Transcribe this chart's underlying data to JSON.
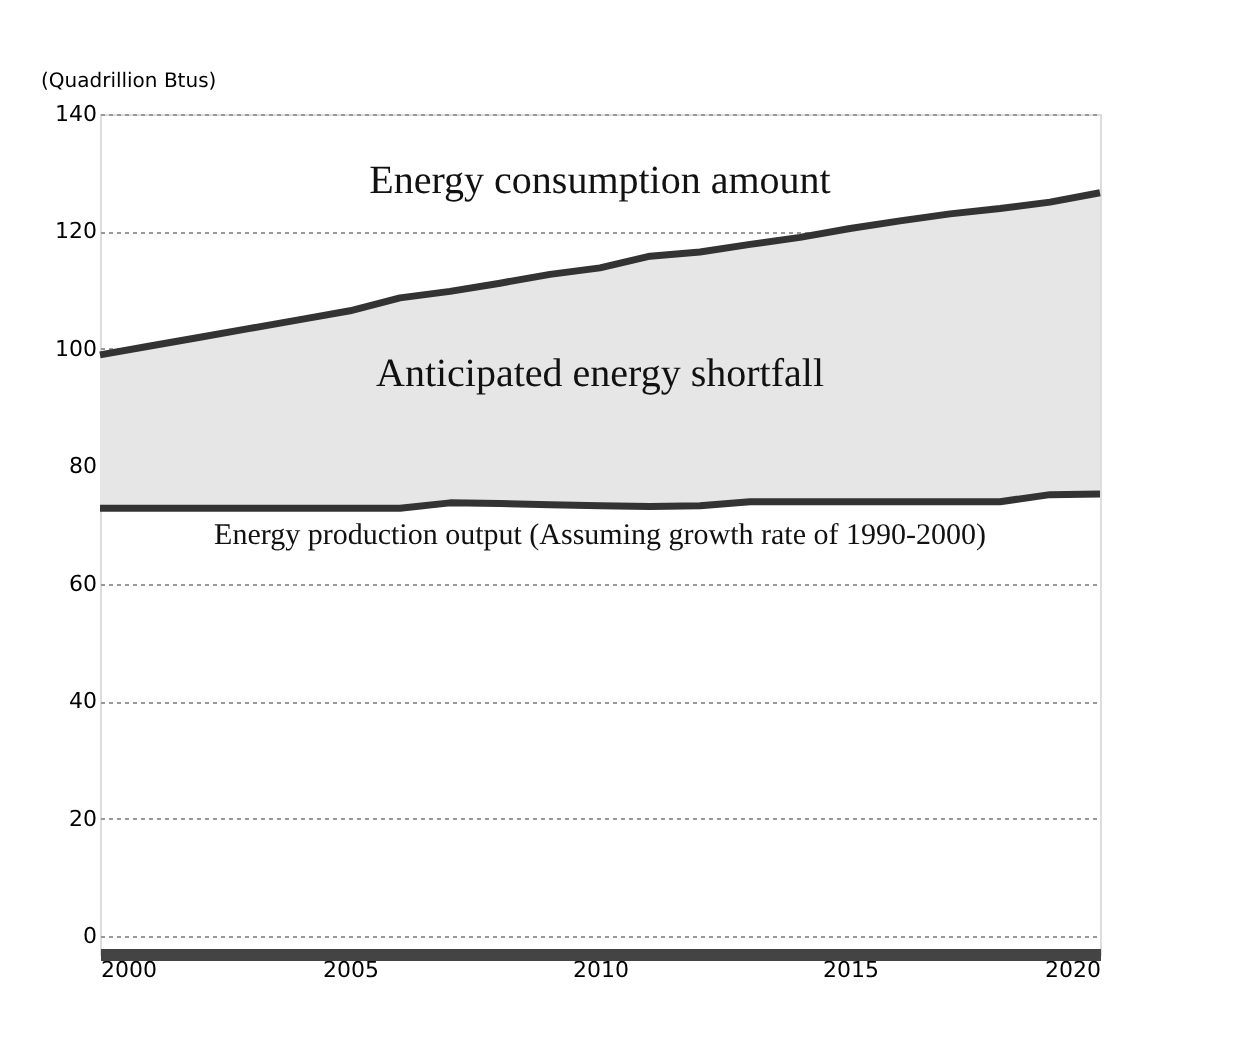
{
  "chart_data": {
    "type": "line",
    "ylabel": "(Quadrillion Btus)",
    "x": [
      2000,
      2001,
      2002,
      2003,
      2004,
      2005,
      2006,
      2007,
      2008,
      2009,
      2010,
      2011,
      2012,
      2013,
      2014,
      2015,
      2016,
      2017,
      2018,
      2019,
      2020
    ],
    "series": [
      {
        "color": "#333333",
        "values": [
          99,
          100.5,
          102,
          103.5,
          105,
          106.5,
          108.7,
          109.8,
          111.2,
          112.7,
          113.8,
          115.8,
          116.5,
          117.8,
          119,
          120.5,
          121.8,
          123,
          123.9,
          125,
          126.6
        ],
        "lower": [
          72.9,
          72.9,
          72.9,
          72.9,
          72.9,
          72.9,
          72.9,
          73.8,
          73.7,
          73.5,
          73.3,
          73.2,
          73.3,
          74,
          74,
          74,
          74,
          74,
          74,
          75.2,
          75.3
        ],
        "upper": [
          99,
          100.5,
          102,
          103.5,
          105,
          106.5,
          108.7,
          109.8,
          111.2,
          112.7,
          113.8,
          115.8,
          116.5,
          117.8,
          119,
          120.5,
          121.8,
          123,
          123.9,
          125,
          126.6
        ]
      },
      {
        "color": "#333333",
        "values": [
          72.9,
          72.9,
          72.9,
          72.9,
          72.9,
          72.9,
          72.9,
          73.8,
          73.7,
          73.5,
          73.3,
          73.2,
          73.3,
          74,
          74,
          74,
          74,
          74,
          74,
          75.2,
          75.3
        ]
      }
    ],
    "annotations": [
      "Energy consumption amount",
      "Anticipated energy shortfall",
      "Energy production output (Assuming growth rate of 1990-2000)"
    ],
    "xlim": [
      2000,
      2020
    ],
    "xticks": [
      2000,
      2005,
      2010,
      2015,
      2020
    ],
    "ylim": [
      -3,
      140
    ],
    "yticks": [
      0,
      20,
      40,
      60,
      80,
      100,
      120,
      140
    ],
    "grid": "y",
    "marker": "none",
    "line_style": "solid"
  }
}
